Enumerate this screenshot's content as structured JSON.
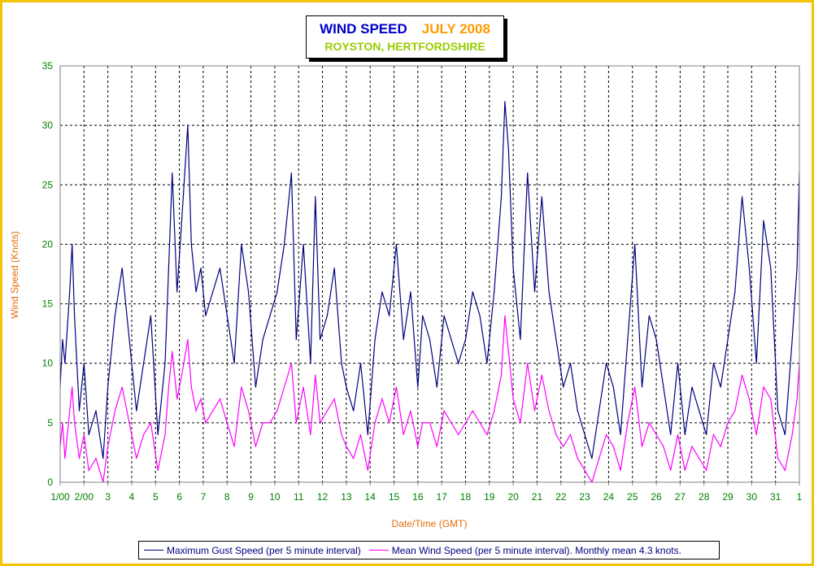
{
  "chart_data": {
    "type": "line",
    "title": "WIND SPEED",
    "title_period": "JULY 2008",
    "subtitle": "ROYSTON, HERTFORDSHIRE",
    "xlabel": "Date/Time (GMT)",
    "ylabel": "Wind Speed (Knots)",
    "ylim": [
      0,
      35
    ],
    "yticks": [
      "0",
      "5",
      "10",
      "15",
      "20",
      "25",
      "30",
      "35"
    ],
    "xtick_labels": [
      "1/00",
      "2/00",
      "3",
      "4",
      "5",
      "6",
      "7",
      "8",
      "9",
      "10",
      "11",
      "12",
      "13",
      "14",
      "15",
      "16",
      "17",
      "18",
      "19",
      "20",
      "21",
      "22",
      "23",
      "24",
      "25",
      "26",
      "27",
      "28",
      "29",
      "30",
      "31",
      "1"
    ],
    "x_unit": "days (July 2008)",
    "x_range": [
      1,
      32
    ],
    "grid": true,
    "legend_position": "bottom",
    "series": [
      {
        "name": "Maximum Gust Speed (per 5 minute interval)",
        "color": "#000080",
        "x": [
          1.0,
          1.1,
          1.2,
          1.4,
          1.5,
          1.6,
          1.8,
          2.0,
          2.2,
          2.5,
          2.8,
          3.0,
          3.3,
          3.6,
          3.9,
          4.2,
          4.5,
          4.8,
          5.1,
          5.4,
          5.55,
          5.7,
          5.9,
          6.1,
          6.35,
          6.5,
          6.7,
          6.9,
          7.1,
          7.4,
          7.7,
          8.0,
          8.3,
          8.6,
          8.9,
          9.2,
          9.5,
          9.8,
          10.1,
          10.4,
          10.7,
          10.9,
          11.2,
          11.5,
          11.7,
          11.9,
          12.2,
          12.5,
          12.8,
          13.0,
          13.3,
          13.6,
          13.9,
          14.2,
          14.5,
          14.8,
          15.1,
          15.4,
          15.7,
          16.0,
          16.2,
          16.5,
          16.8,
          17.1,
          17.4,
          17.7,
          18.0,
          18.3,
          18.6,
          18.9,
          19.2,
          19.5,
          19.65,
          19.8,
          20.0,
          20.3,
          20.6,
          20.9,
          21.2,
          21.5,
          21.8,
          22.1,
          22.4,
          22.7,
          23.0,
          23.3,
          23.6,
          23.9,
          24.2,
          24.5,
          24.8,
          25.1,
          25.4,
          25.7,
          26.0,
          26.3,
          26.6,
          26.9,
          27.2,
          27.5,
          27.8,
          28.1,
          28.4,
          28.7,
          29.0,
          29.3,
          29.6,
          29.9,
          30.2,
          30.5,
          30.8,
          31.1,
          31.4,
          31.7,
          31.9,
          32.0
        ],
        "values": [
          8,
          12,
          10,
          16,
          20,
          14,
          6,
          10,
          4,
          6,
          2,
          8,
          14,
          18,
          12,
          6,
          10,
          14,
          4,
          10,
          18,
          26,
          16,
          22,
          30,
          20,
          16,
          18,
          14,
          16,
          18,
          14,
          10,
          20,
          16,
          8,
          12,
          14,
          16,
          20,
          26,
          12,
          20,
          10,
          24,
          12,
          14,
          18,
          10,
          8,
          6,
          10,
          4,
          12,
          16,
          14,
          20,
          12,
          16,
          8,
          14,
          12,
          8,
          14,
          12,
          10,
          12,
          16,
          14,
          10,
          16,
          24,
          32,
          28,
          18,
          12,
          26,
          16,
          24,
          16,
          12,
          8,
          10,
          6,
          4,
          2,
          6,
          10,
          8,
          4,
          12,
          20,
          8,
          14,
          12,
          8,
          4,
          10,
          4,
          8,
          6,
          4,
          10,
          8,
          12,
          16,
          24,
          18,
          10,
          22,
          18,
          6,
          4,
          12,
          18,
          26
        ]
      },
      {
        "name": "Mean Wind Speed (per 5 minute interval). Monthly mean 4.3 knots.",
        "color": "#ff00ff",
        "monthly_mean": 4.3,
        "x": [
          1.0,
          1.1,
          1.2,
          1.4,
          1.5,
          1.6,
          1.8,
          2.0,
          2.2,
          2.5,
          2.8,
          3.0,
          3.3,
          3.6,
          3.9,
          4.2,
          4.5,
          4.8,
          5.1,
          5.4,
          5.55,
          5.7,
          5.9,
          6.1,
          6.35,
          6.5,
          6.7,
          6.9,
          7.1,
          7.4,
          7.7,
          8.0,
          8.3,
          8.6,
          8.9,
          9.2,
          9.5,
          9.8,
          10.1,
          10.4,
          10.7,
          10.9,
          11.2,
          11.5,
          11.7,
          11.9,
          12.2,
          12.5,
          12.8,
          13.0,
          13.3,
          13.6,
          13.9,
          14.2,
          14.5,
          14.8,
          15.1,
          15.4,
          15.7,
          16.0,
          16.2,
          16.5,
          16.8,
          17.1,
          17.4,
          17.7,
          18.0,
          18.3,
          18.6,
          18.9,
          19.2,
          19.5,
          19.65,
          19.8,
          20.0,
          20.3,
          20.6,
          20.9,
          21.2,
          21.5,
          21.8,
          22.1,
          22.4,
          22.7,
          23.0,
          23.3,
          23.6,
          23.9,
          24.2,
          24.5,
          24.8,
          25.1,
          25.4,
          25.7,
          26.0,
          26.3,
          26.6,
          26.9,
          27.2,
          27.5,
          27.8,
          28.1,
          28.4,
          28.7,
          29.0,
          29.3,
          29.6,
          29.9,
          30.2,
          30.5,
          30.8,
          31.1,
          31.4,
          31.7,
          31.9,
          32.0
        ],
        "values": [
          3,
          5,
          2,
          6,
          8,
          5,
          2,
          4,
          1,
          2,
          0,
          3,
          6,
          8,
          5,
          2,
          4,
          5,
          1,
          4,
          8,
          11,
          7,
          9,
          12,
          8,
          6,
          7,
          5,
          6,
          7,
          5,
          3,
          8,
          6,
          3,
          5,
          5,
          6,
          8,
          10,
          5,
          8,
          4,
          9,
          5,
          6,
          7,
          4,
          3,
          2,
          4,
          1,
          5,
          7,
          5,
          8,
          4,
          6,
          3,
          5,
          5,
          3,
          6,
          5,
          4,
          5,
          6,
          5,
          4,
          6,
          9,
          14,
          11,
          7,
          5,
          10,
          6,
          9,
          6,
          4,
          3,
          4,
          2,
          1,
          0,
          2,
          4,
          3,
          1,
          5,
          8,
          3,
          5,
          4,
          3,
          1,
          4,
          1,
          3,
          2,
          1,
          4,
          3,
          5,
          6,
          9,
          7,
          4,
          8,
          7,
          2,
          1,
          4,
          7,
          10
        ]
      }
    ]
  }
}
